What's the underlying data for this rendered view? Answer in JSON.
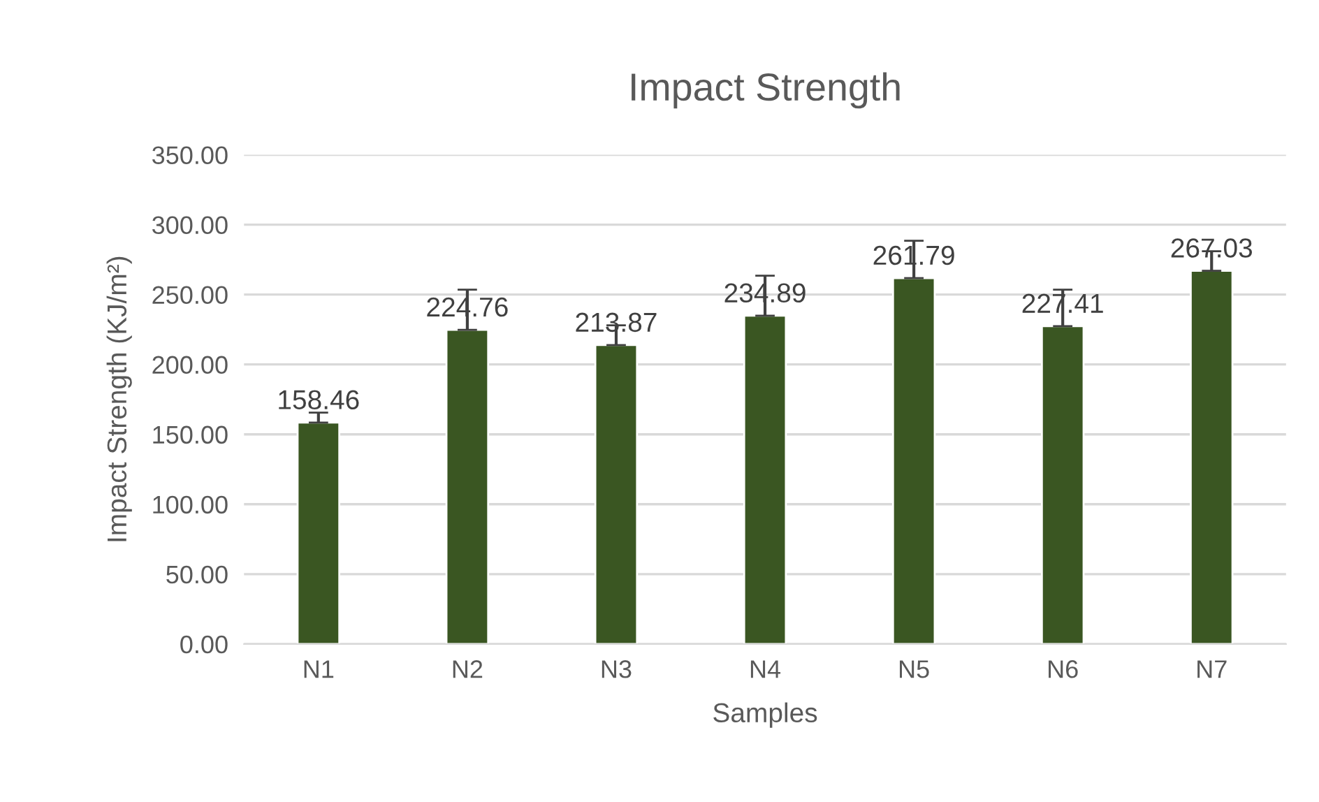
{
  "chart_data": {
    "type": "bar",
    "title": "Impact Strength",
    "xlabel": "Samples",
    "ylabel": "Impact Strength (KJ/m²)",
    "categories": [
      "N1",
      "N2",
      "N3",
      "N4",
      "N5",
      "N6",
      "N7"
    ],
    "values": [
      158.46,
      224.76,
      213.87,
      234.89,
      261.79,
      227.41,
      267.03
    ],
    "errors": [
      [
        158.46,
        165.5
      ],
      [
        224.76,
        253.5
      ],
      [
        213.87,
        228
      ],
      [
        234.89,
        263.5
      ],
      [
        261.79,
        288.5
      ],
      [
        227.41,
        253.5
      ],
      [
        267.03,
        281
      ]
    ],
    "color": "#3a5622",
    "data_labels": true,
    "grid": "y",
    "legend": false,
    "ylim": [
      0,
      350
    ],
    "yticks": [
      {
        "value": 0,
        "label": "0.00"
      },
      {
        "value": 50,
        "label": "50.00"
      },
      {
        "value": 100,
        "label": "100.00"
      },
      {
        "value": 150,
        "label": "150.00"
      },
      {
        "value": 200,
        "label": "200.00"
      },
      {
        "value": 250,
        "label": "250.00"
      },
      {
        "value": 300,
        "label": "300.00"
      },
      {
        "value": 350,
        "label": "350.00"
      }
    ]
  }
}
